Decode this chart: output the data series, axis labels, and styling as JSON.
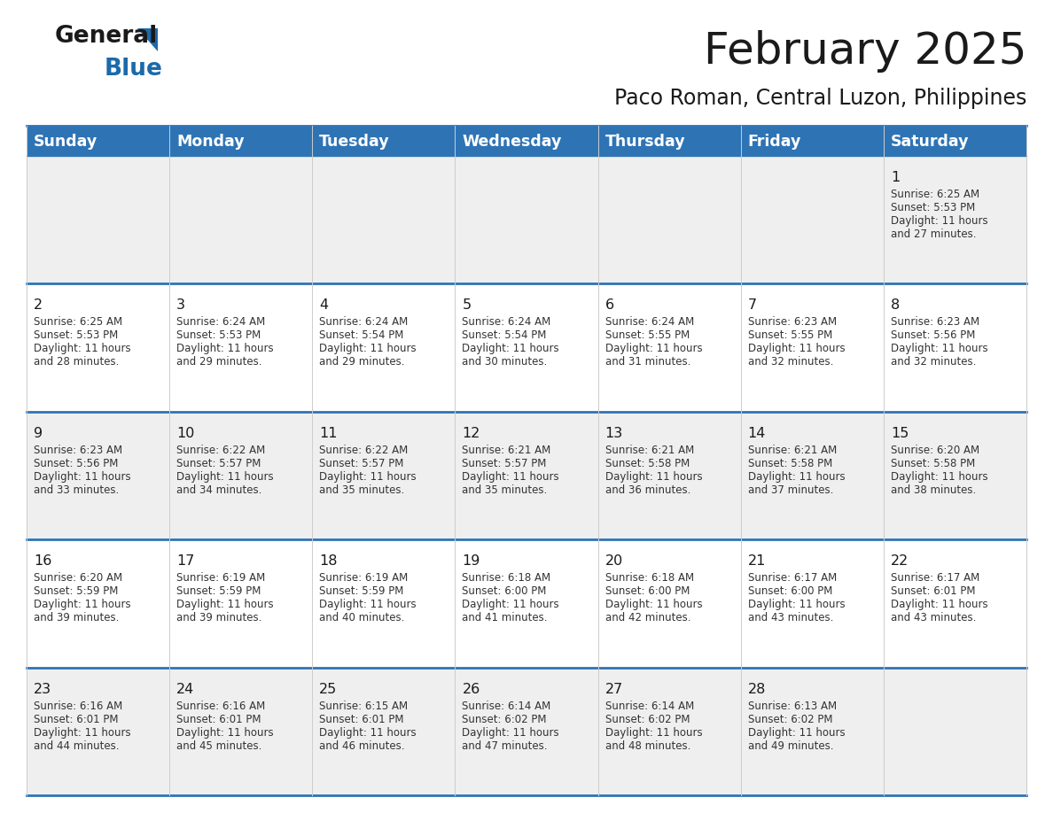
{
  "title": "February 2025",
  "subtitle": "Paco Roman, Central Luzon, Philippines",
  "header_bg": "#2E74B5",
  "header_text_color": "#FFFFFF",
  "row_bg_odd": "#EFEFEF",
  "row_bg_even": "#FFFFFF",
  "border_color": "#2E74B5",
  "separator_color": "#CCCCCC",
  "day_headers": [
    "Sunday",
    "Monday",
    "Tuesday",
    "Wednesday",
    "Thursday",
    "Friday",
    "Saturday"
  ],
  "days": [
    {
      "day": 1,
      "col": 6,
      "row": 0,
      "sunrise": "6:25 AM",
      "sunset": "5:53 PM",
      "daylight_h": "11 hours",
      "daylight_m": "and 27 minutes."
    },
    {
      "day": 2,
      "col": 0,
      "row": 1,
      "sunrise": "6:25 AM",
      "sunset": "5:53 PM",
      "daylight_h": "11 hours",
      "daylight_m": "and 28 minutes."
    },
    {
      "day": 3,
      "col": 1,
      "row": 1,
      "sunrise": "6:24 AM",
      "sunset": "5:53 PM",
      "daylight_h": "11 hours",
      "daylight_m": "and 29 minutes."
    },
    {
      "day": 4,
      "col": 2,
      "row": 1,
      "sunrise": "6:24 AM",
      "sunset": "5:54 PM",
      "daylight_h": "11 hours",
      "daylight_m": "and 29 minutes."
    },
    {
      "day": 5,
      "col": 3,
      "row": 1,
      "sunrise": "6:24 AM",
      "sunset": "5:54 PM",
      "daylight_h": "11 hours",
      "daylight_m": "and 30 minutes."
    },
    {
      "day": 6,
      "col": 4,
      "row": 1,
      "sunrise": "6:24 AM",
      "sunset": "5:55 PM",
      "daylight_h": "11 hours",
      "daylight_m": "and 31 minutes."
    },
    {
      "day": 7,
      "col": 5,
      "row": 1,
      "sunrise": "6:23 AM",
      "sunset": "5:55 PM",
      "daylight_h": "11 hours",
      "daylight_m": "and 32 minutes."
    },
    {
      "day": 8,
      "col": 6,
      "row": 1,
      "sunrise": "6:23 AM",
      "sunset": "5:56 PM",
      "daylight_h": "11 hours",
      "daylight_m": "and 32 minutes."
    },
    {
      "day": 9,
      "col": 0,
      "row": 2,
      "sunrise": "6:23 AM",
      "sunset": "5:56 PM",
      "daylight_h": "11 hours",
      "daylight_m": "and 33 minutes."
    },
    {
      "day": 10,
      "col": 1,
      "row": 2,
      "sunrise": "6:22 AM",
      "sunset": "5:57 PM",
      "daylight_h": "11 hours",
      "daylight_m": "and 34 minutes."
    },
    {
      "day": 11,
      "col": 2,
      "row": 2,
      "sunrise": "6:22 AM",
      "sunset": "5:57 PM",
      "daylight_h": "11 hours",
      "daylight_m": "and 35 minutes."
    },
    {
      "day": 12,
      "col": 3,
      "row": 2,
      "sunrise": "6:21 AM",
      "sunset": "5:57 PM",
      "daylight_h": "11 hours",
      "daylight_m": "and 35 minutes."
    },
    {
      "day": 13,
      "col": 4,
      "row": 2,
      "sunrise": "6:21 AM",
      "sunset": "5:58 PM",
      "daylight_h": "11 hours",
      "daylight_m": "and 36 minutes."
    },
    {
      "day": 14,
      "col": 5,
      "row": 2,
      "sunrise": "6:21 AM",
      "sunset": "5:58 PM",
      "daylight_h": "11 hours",
      "daylight_m": "and 37 minutes."
    },
    {
      "day": 15,
      "col": 6,
      "row": 2,
      "sunrise": "6:20 AM",
      "sunset": "5:58 PM",
      "daylight_h": "11 hours",
      "daylight_m": "and 38 minutes."
    },
    {
      "day": 16,
      "col": 0,
      "row": 3,
      "sunrise": "6:20 AM",
      "sunset": "5:59 PM",
      "daylight_h": "11 hours",
      "daylight_m": "and 39 minutes."
    },
    {
      "day": 17,
      "col": 1,
      "row": 3,
      "sunrise": "6:19 AM",
      "sunset": "5:59 PM",
      "daylight_h": "11 hours",
      "daylight_m": "and 39 minutes."
    },
    {
      "day": 18,
      "col": 2,
      "row": 3,
      "sunrise": "6:19 AM",
      "sunset": "5:59 PM",
      "daylight_h": "11 hours",
      "daylight_m": "and 40 minutes."
    },
    {
      "day": 19,
      "col": 3,
      "row": 3,
      "sunrise": "6:18 AM",
      "sunset": "6:00 PM",
      "daylight_h": "11 hours",
      "daylight_m": "and 41 minutes."
    },
    {
      "day": 20,
      "col": 4,
      "row": 3,
      "sunrise": "6:18 AM",
      "sunset": "6:00 PM",
      "daylight_h": "11 hours",
      "daylight_m": "and 42 minutes."
    },
    {
      "day": 21,
      "col": 5,
      "row": 3,
      "sunrise": "6:17 AM",
      "sunset": "6:00 PM",
      "daylight_h": "11 hours",
      "daylight_m": "and 43 minutes."
    },
    {
      "day": 22,
      "col": 6,
      "row": 3,
      "sunrise": "6:17 AM",
      "sunset": "6:01 PM",
      "daylight_h": "11 hours",
      "daylight_m": "and 43 minutes."
    },
    {
      "day": 23,
      "col": 0,
      "row": 4,
      "sunrise": "6:16 AM",
      "sunset": "6:01 PM",
      "daylight_h": "11 hours",
      "daylight_m": "and 44 minutes."
    },
    {
      "day": 24,
      "col": 1,
      "row": 4,
      "sunrise": "6:16 AM",
      "sunset": "6:01 PM",
      "daylight_h": "11 hours",
      "daylight_m": "and 45 minutes."
    },
    {
      "day": 25,
      "col": 2,
      "row": 4,
      "sunrise": "6:15 AM",
      "sunset": "6:01 PM",
      "daylight_h": "11 hours",
      "daylight_m": "and 46 minutes."
    },
    {
      "day": 26,
      "col": 3,
      "row": 4,
      "sunrise": "6:14 AM",
      "sunset": "6:02 PM",
      "daylight_h": "11 hours",
      "daylight_m": "and 47 minutes."
    },
    {
      "day": 27,
      "col": 4,
      "row": 4,
      "sunrise": "6:14 AM",
      "sunset": "6:02 PM",
      "daylight_h": "11 hours",
      "daylight_m": "and 48 minutes."
    },
    {
      "day": 28,
      "col": 5,
      "row": 4,
      "sunrise": "6:13 AM",
      "sunset": "6:02 PM",
      "daylight_h": "11 hours",
      "daylight_m": "and 49 minutes."
    }
  ],
  "logo_text1": "General",
  "logo_text2": "Blue",
  "logo_color1": "#1a1a1a",
  "logo_color2": "#1B6AAA",
  "title_fontsize": 36,
  "subtitle_fontsize": 17,
  "header_fontsize": 12.5,
  "day_num_fontsize": 11.5,
  "cell_text_fontsize": 8.5
}
